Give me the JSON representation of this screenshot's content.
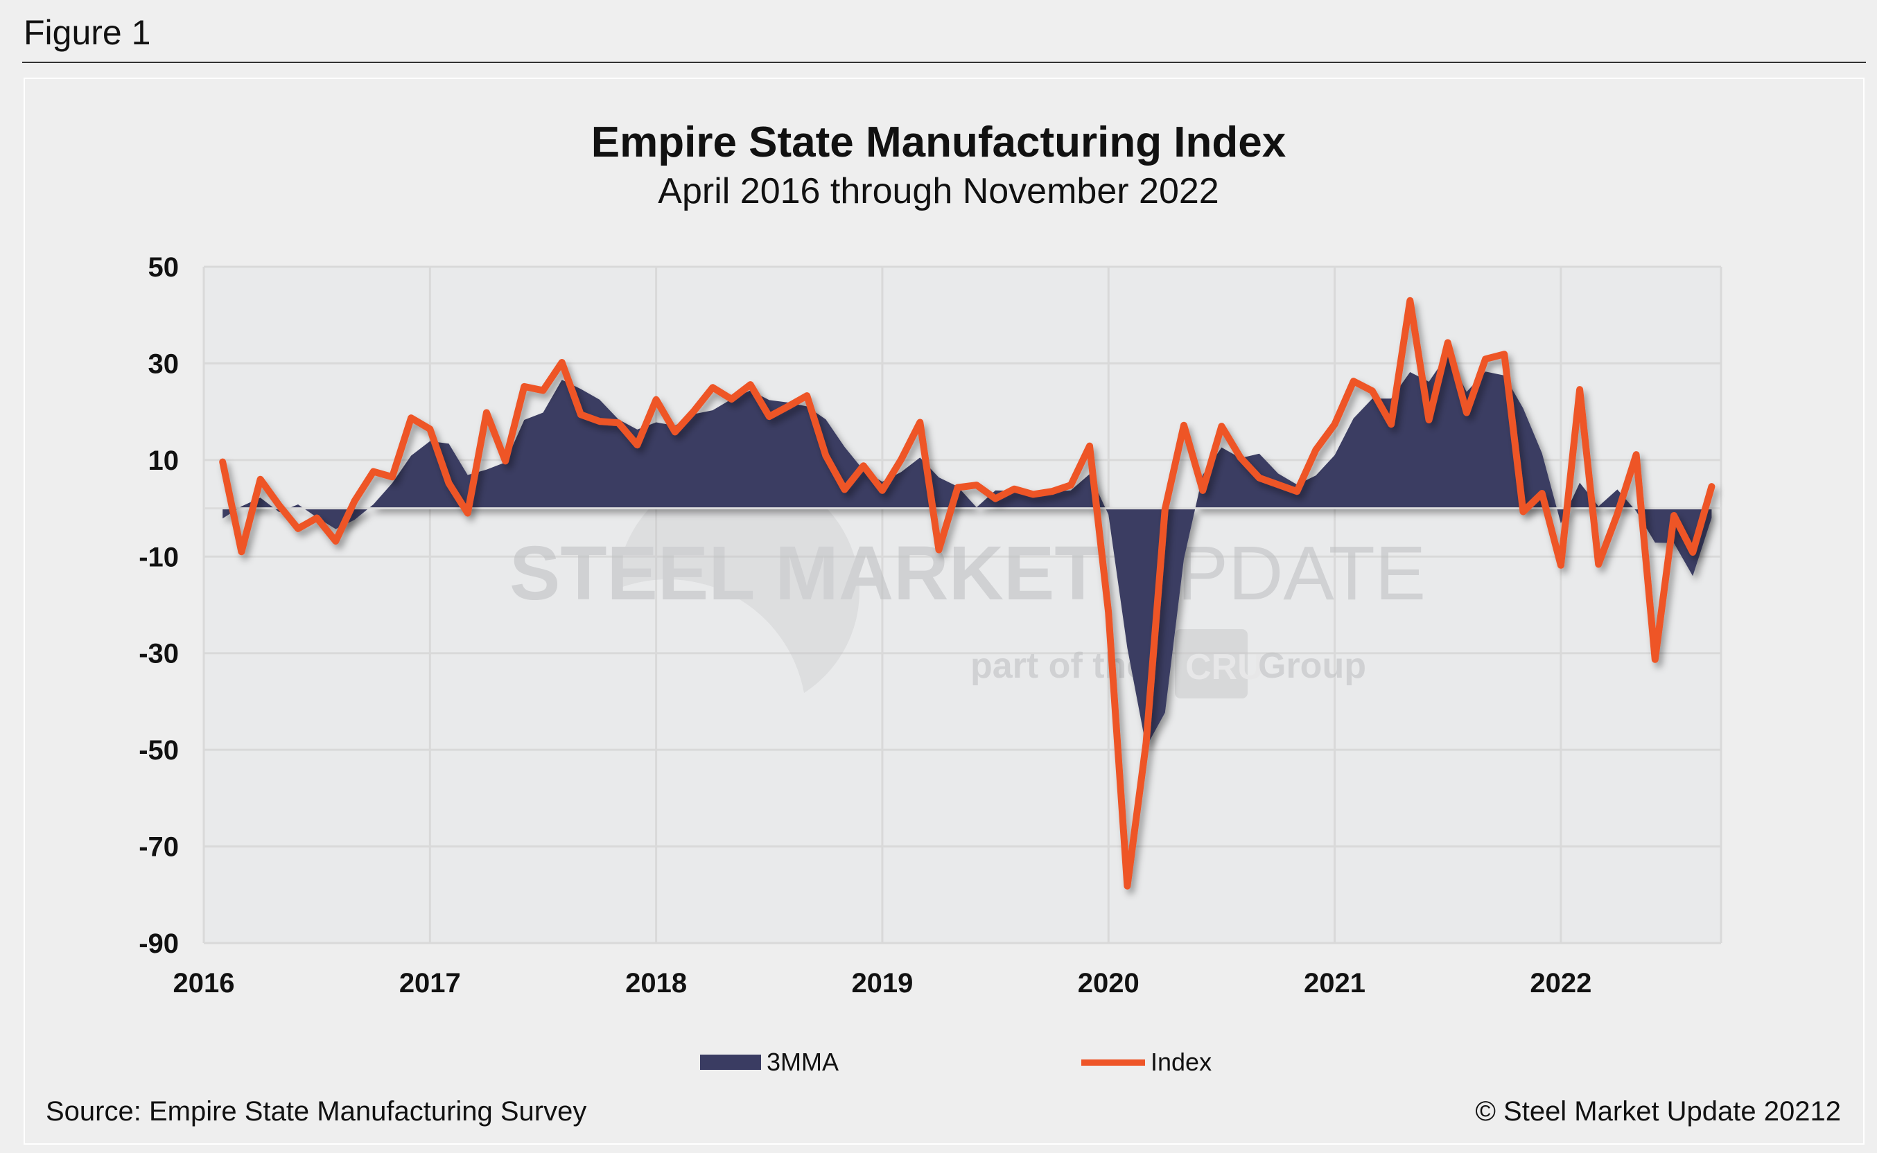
{
  "figure_label": "Figure 1",
  "source": "Source: Empire State Manufacturing Survey",
  "copyright": "© Steel Market Update 20212",
  "watermark": {
    "line1_bold": "STEEL MARKET",
    "line1_light": "UPDATE",
    "line2a": "part of the",
    "line2_box": "CRU",
    "line2b": "Group"
  },
  "colors": {
    "area": "#3a3c62",
    "line": "#ee5528",
    "grid": "#d9d9d9",
    "plot_bg": "#e9eaeb"
  },
  "chart_data": {
    "type": "line",
    "title": "Empire State Manufacturing Index",
    "subtitle": "April 2016 through November 2022",
    "ylim": [
      -90,
      50
    ],
    "y_ticks": [
      "50",
      "30",
      "10",
      "-10",
      "-30",
      "-50",
      "-70",
      "-90"
    ],
    "x_ticks": [
      "2016",
      "2017",
      "2018",
      "2019",
      "2020",
      "2021",
      "2022"
    ],
    "grid": true,
    "legend": "bottom",
    "series": [
      {
        "name": "3MMA",
        "style": "area",
        "values": [
          -2.1,
          0.4,
          2.2,
          -0.8,
          0.8,
          -1.9,
          -4.3,
          -2.4,
          0.8,
          5.2,
          10.9,
          13.9,
          13.4,
          6.9,
          8.0,
          9.5,
          18.3,
          19.8,
          26.6,
          24.7,
          22.5,
          18.4,
          16.3,
          17.8,
          17.1,
          19.5,
          20.3,
          22.6,
          24.4,
          22.4,
          21.9,
          21.1,
          18.4,
          12.7,
          7.9,
          5.5,
          7.5,
          10.5,
          6.4,
          4.5,
          0.2,
          3.7,
          3.6,
          3.0,
          3.5,
          3.7,
          7.1,
          -1.3,
          -28.9,
          -49.4,
          -42.3,
          -10.5,
          6.9,
          12.6,
          10.4,
          11.3,
          7.2,
          4.9,
          6.8,
          11.0,
          18.6,
          22.7,
          22.7,
          28.2,
          26.2,
          31.9,
          24.1,
          28.3,
          27.5,
          20.7,
          11.4,
          -3.1,
          5.3,
          0.4,
          3.9,
          -0.6,
          -7.1,
          -7.2,
          -14.0,
          -2.0
        ]
      },
      {
        "name": "Index",
        "style": "line",
        "values": [
          9.6,
          -9.0,
          6.0,
          0.6,
          -4.2,
          -2.0,
          -6.8,
          1.5,
          7.6,
          6.5,
          18.7,
          16.4,
          5.2,
          -1.0,
          19.8,
          9.8,
          25.2,
          24.4,
          30.2,
          19.4,
          18.0,
          17.7,
          13.1,
          22.5,
          15.8,
          20.1,
          25.0,
          22.6,
          25.6,
          19.0,
          21.1,
          23.3,
          10.9,
          3.9,
          8.8,
          3.7,
          10.1,
          17.8,
          -8.6,
          4.3,
          4.8,
          2.0,
          4.0,
          2.9,
          3.5,
          4.8,
          12.9,
          -21.5,
          -78.2,
          -48.5,
          -0.2,
          17.2,
          3.7,
          17.0,
          10.5,
          6.3,
          4.9,
          3.5,
          12.1,
          17.4,
          26.3,
          24.3,
          17.4,
          43.0,
          18.3,
          34.3,
          19.8,
          30.9,
          31.9,
          -0.7,
          3.1,
          -11.8,
          24.6,
          -11.6,
          -1.2,
          11.1,
          -31.3,
          -1.5,
          -9.1,
          4.5
        ]
      }
    ]
  }
}
